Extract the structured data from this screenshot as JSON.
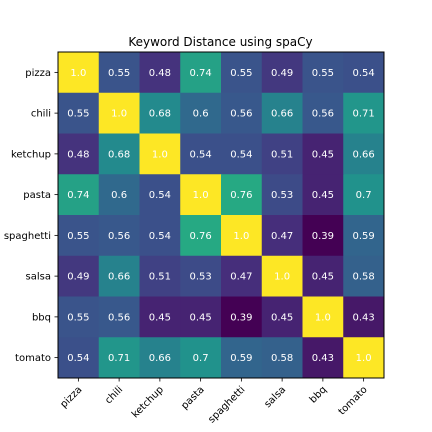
{
  "chart_data": {
    "type": "heatmap",
    "title": "Keyword Distance using spaCy",
    "xlabel": "",
    "ylabel": "",
    "x_categories": [
      "pizza",
      "chili",
      "ketchup",
      "pasta",
      "spaghetti",
      "salsa",
      "bbq",
      "tomato"
    ],
    "y_categories": [
      "pizza",
      "chili",
      "ketchup",
      "pasta",
      "spaghetti",
      "salsa",
      "bbq",
      "tomato"
    ],
    "values": [
      [
        1.0,
        0.55,
        0.48,
        0.74,
        0.55,
        0.49,
        0.55,
        0.54
      ],
      [
        0.55,
        1.0,
        0.68,
        0.6,
        0.56,
        0.66,
        0.56,
        0.71
      ],
      [
        0.48,
        0.68,
        1.0,
        0.54,
        0.54,
        0.51,
        0.45,
        0.66
      ],
      [
        0.74,
        0.6,
        0.54,
        1.0,
        0.76,
        0.53,
        0.45,
        0.7
      ],
      [
        0.55,
        0.56,
        0.54,
        0.76,
        1.0,
        0.47,
        0.39,
        0.59
      ],
      [
        0.49,
        0.66,
        0.51,
        0.53,
        0.47,
        1.0,
        0.45,
        0.58
      ],
      [
        0.55,
        0.56,
        0.45,
        0.45,
        0.39,
        0.45,
        1.0,
        0.43
      ],
      [
        0.54,
        0.71,
        0.66,
        0.7,
        0.59,
        0.58,
        0.43,
        1.0
      ]
    ],
    "cell_labels": [
      [
        "1.0",
        "0.55",
        "0.48",
        "0.74",
        "0.55",
        "0.49",
        "0.55",
        "0.54"
      ],
      [
        "0.55",
        "1.0",
        "0.68",
        "0.6",
        "0.56",
        "0.66",
        "0.56",
        "0.71"
      ],
      [
        "0.48",
        "0.68",
        "1.0",
        "0.54",
        "0.54",
        "0.51",
        "0.45",
        "0.66"
      ],
      [
        "0.74",
        "0.6",
        "0.54",
        "1.0",
        "0.76",
        "0.53",
        "0.45",
        "0.7"
      ],
      [
        "0.55",
        "0.56",
        "0.54",
        "0.76",
        "1.0",
        "0.47",
        "0.39",
        "0.59"
      ],
      [
        "0.49",
        "0.66",
        "0.51",
        "0.53",
        "0.47",
        "1.0",
        "0.45",
        "0.58"
      ],
      [
        "0.55",
        "0.56",
        "0.45",
        "0.45",
        "0.39",
        "0.45",
        "1.0",
        "0.43"
      ],
      [
        "0.54",
        "0.71",
        "0.66",
        "0.7",
        "0.59",
        "0.58",
        "0.43",
        "1.0"
      ]
    ],
    "colormap": "viridis",
    "value_range": [
      0.39,
      1.0
    ],
    "x_tick_rotation": "45deg",
    "grid": false,
    "legend": "none",
    "label_color": "#ffffff"
  }
}
